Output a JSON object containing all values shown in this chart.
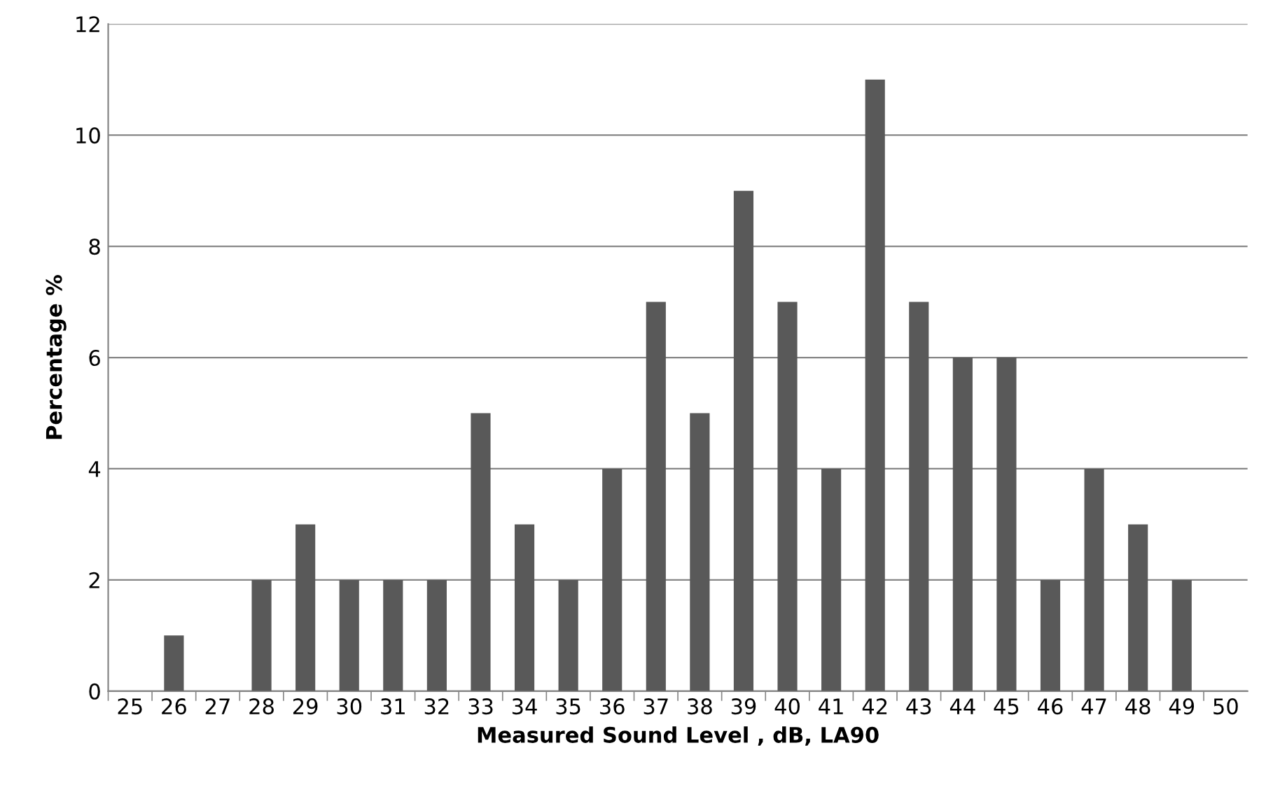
{
  "chart_data": {
    "type": "bar",
    "xlabel": "Measured Sound Level , dB, LA90",
    "ylabel": "Percentage %",
    "categories": [
      "25",
      "26",
      "27",
      "28",
      "29",
      "30",
      "31",
      "32",
      "33",
      "34",
      "35",
      "36",
      "37",
      "38",
      "39",
      "40",
      "41",
      "42",
      "43",
      "44",
      "45",
      "46",
      "47",
      "48",
      "49",
      "50"
    ],
    "series": [
      {
        "color": "#595959",
        "values": [
          0,
          1,
          0,
          2,
          3,
          2,
          2,
          2,
          5,
          3,
          2,
          4,
          7,
          5,
          9,
          7,
          4,
          11,
          7,
          6,
          6,
          2,
          4,
          3,
          2,
          0
        ]
      }
    ],
    "ylim": [
      0,
      12
    ],
    "yticks": [
      0,
      2,
      4,
      6,
      8,
      10,
      12
    ],
    "grid": "y",
    "legend": false
  }
}
